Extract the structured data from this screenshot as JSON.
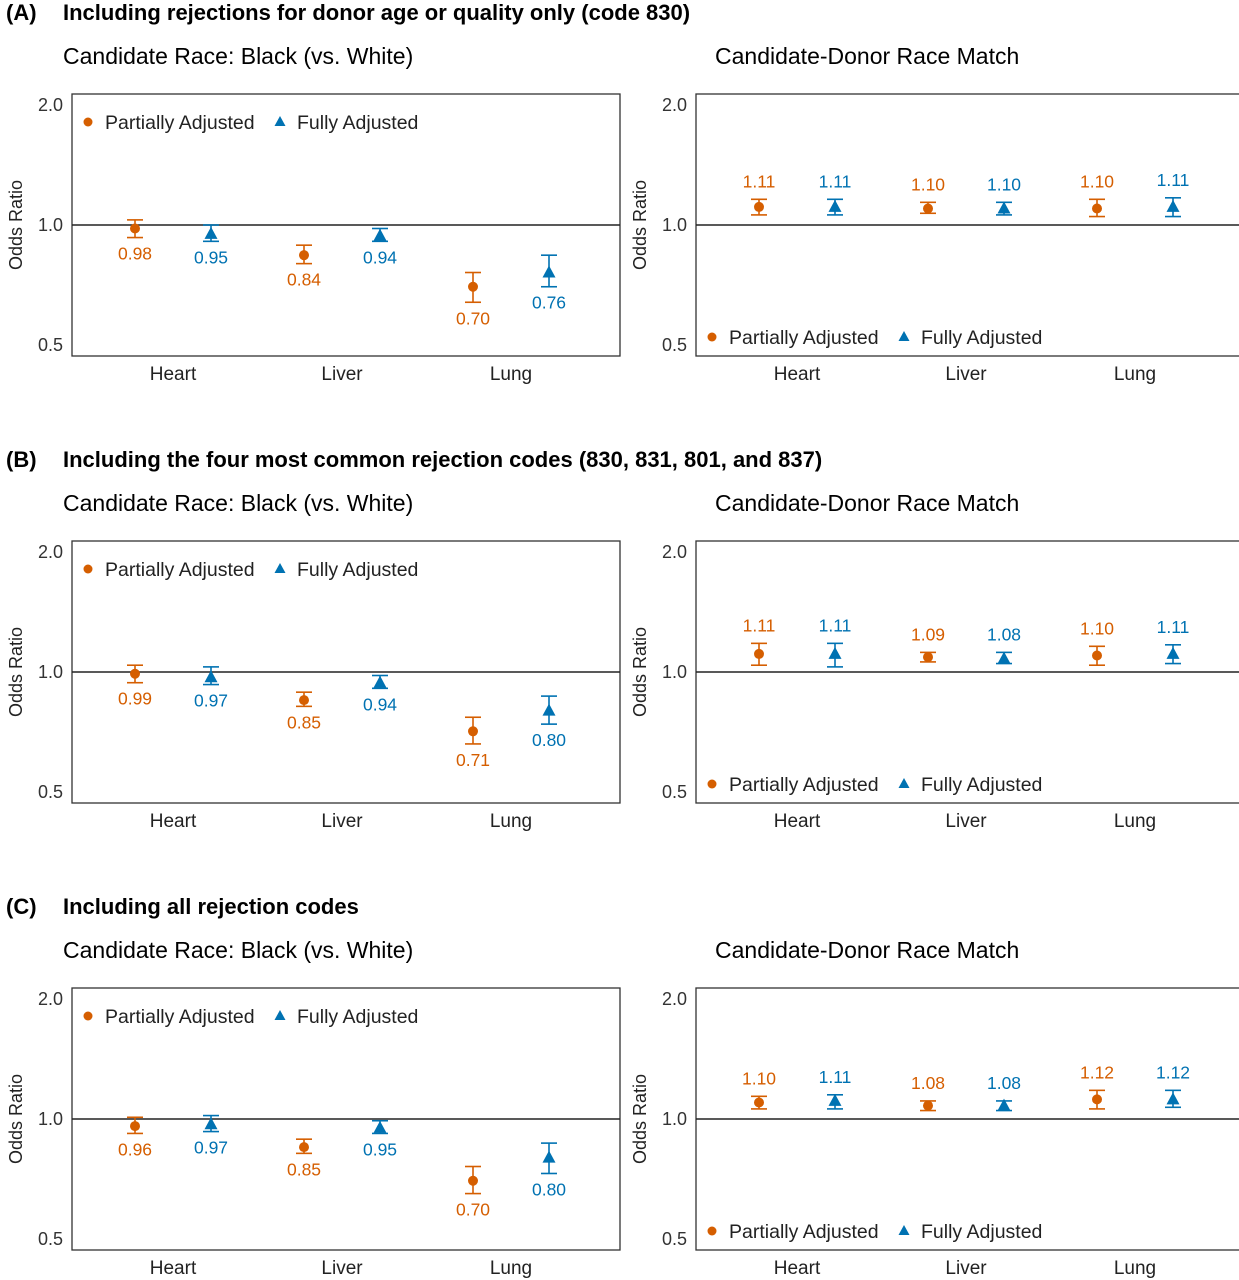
{
  "colors": {
    "partial": "#D55E00",
    "full": "#0072B2"
  },
  "legend": {
    "partial": "Partially Adjusted",
    "full": "Fully Adjusted"
  },
  "sections": [
    {
      "letter": "(A)",
      "title": "Including rejections for donor age or quality only (code 830)"
    },
    {
      "letter": "(B)",
      "title": "Including the four most common rejection codes (830, 831, 801, and 837)"
    },
    {
      "letter": "(C)",
      "title": "Including all rejection codes"
    }
  ],
  "chart_data": [
    {
      "type": "scatter",
      "section": 0,
      "title": "Candidate Race: Black (vs. White)",
      "ylabel": "Odds Ratio",
      "yscale": "log",
      "ylim": [
        0.5,
        2.0
      ],
      "yticks": [
        "0.5",
        "1.0",
        "2.0"
      ],
      "hline": 1.0,
      "categories": [
        "Heart",
        "Liver",
        "Lung"
      ],
      "legend_position": "top-left",
      "series": [
        {
          "name": "Partially Adjusted",
          "marker": "circle",
          "values": [
            0.98,
            0.84,
            0.7
          ],
          "labels": [
            "0.98",
            "0.84",
            "0.70"
          ],
          "ci_low": [
            0.93,
            0.8,
            0.64
          ],
          "ci_high": [
            1.03,
            0.89,
            0.76
          ]
        },
        {
          "name": "Fully Adjusted",
          "marker": "triangle",
          "values": [
            0.95,
            0.94,
            0.76
          ],
          "labels": [
            "0.95",
            "0.94",
            "0.76"
          ],
          "ci_low": [
            0.91,
            0.91,
            0.7
          ],
          "ci_high": [
            1.0,
            0.98,
            0.84
          ]
        }
      ]
    },
    {
      "type": "scatter",
      "section": 0,
      "title": "Candidate-Donor Race Match",
      "ylabel": "Odds Ratio",
      "yscale": "log",
      "ylim": [
        0.5,
        2.0
      ],
      "yticks": [
        "0.5",
        "1.0",
        "2.0"
      ],
      "hline": 1.0,
      "categories": [
        "Heart",
        "Liver",
        "Lung"
      ],
      "legend_position": "bottom-left",
      "series": [
        {
          "name": "Partially Adjusted",
          "marker": "circle",
          "values": [
            1.11,
            1.1,
            1.1
          ],
          "labels": [
            "1.11",
            "1.10",
            "1.10"
          ],
          "ci_low": [
            1.06,
            1.07,
            1.05
          ],
          "ci_high": [
            1.16,
            1.14,
            1.16
          ]
        },
        {
          "name": "Fully Adjusted",
          "marker": "triangle",
          "values": [
            1.11,
            1.1,
            1.11
          ],
          "labels": [
            "1.11",
            "1.10",
            "1.11"
          ],
          "ci_low": [
            1.06,
            1.06,
            1.05
          ],
          "ci_high": [
            1.16,
            1.14,
            1.17
          ]
        }
      ]
    },
    {
      "type": "scatter",
      "section": 1,
      "title": "Candidate Race: Black (vs. White)",
      "ylabel": "Odds Ratio",
      "yscale": "log",
      "ylim": [
        0.5,
        2.0
      ],
      "yticks": [
        "0.5",
        "1.0",
        "2.0"
      ],
      "hline": 1.0,
      "categories": [
        "Heart",
        "Liver",
        "Lung"
      ],
      "legend_position": "top-left",
      "series": [
        {
          "name": "Partially Adjusted",
          "marker": "circle",
          "values": [
            0.99,
            0.85,
            0.71
          ],
          "labels": [
            "0.99",
            "0.85",
            "0.71"
          ],
          "ci_low": [
            0.94,
            0.82,
            0.66
          ],
          "ci_high": [
            1.04,
            0.89,
            0.77
          ]
        },
        {
          "name": "Fully Adjusted",
          "marker": "triangle",
          "values": [
            0.97,
            0.94,
            0.8
          ],
          "labels": [
            "0.97",
            "0.94",
            "0.80"
          ],
          "ci_low": [
            0.93,
            0.91,
            0.74
          ],
          "ci_high": [
            1.03,
            0.98,
            0.87
          ]
        }
      ]
    },
    {
      "type": "scatter",
      "section": 1,
      "title": "Candidate-Donor Race Match",
      "ylabel": "Odds Ratio",
      "yscale": "log",
      "ylim": [
        0.5,
        2.0
      ],
      "yticks": [
        "0.5",
        "1.0",
        "2.0"
      ],
      "hline": 1.0,
      "categories": [
        "Heart",
        "Liver",
        "Lung"
      ],
      "legend_position": "bottom-left",
      "series": [
        {
          "name": "Partially Adjusted",
          "marker": "circle",
          "values": [
            1.11,
            1.09,
            1.1
          ],
          "labels": [
            "1.11",
            "1.09",
            "1.10"
          ],
          "ci_low": [
            1.04,
            1.06,
            1.04
          ],
          "ci_high": [
            1.18,
            1.12,
            1.16
          ]
        },
        {
          "name": "Fully Adjusted",
          "marker": "triangle",
          "values": [
            1.11,
            1.08,
            1.11
          ],
          "labels": [
            "1.11",
            "1.08",
            "1.11"
          ],
          "ci_low": [
            1.03,
            1.05,
            1.05
          ],
          "ci_high": [
            1.18,
            1.12,
            1.17
          ]
        }
      ]
    },
    {
      "type": "scatter",
      "section": 2,
      "title": "Candidate Race: Black (vs. White)",
      "ylabel": "Odds Ratio",
      "yscale": "log",
      "ylim": [
        0.5,
        2.0
      ],
      "yticks": [
        "0.5",
        "1.0",
        "2.0"
      ],
      "hline": 1.0,
      "categories": [
        "Heart",
        "Liver",
        "Lung"
      ],
      "legend_position": "top-left",
      "series": [
        {
          "name": "Partially Adjusted",
          "marker": "circle",
          "values": [
            0.96,
            0.85,
            0.7
          ],
          "labels": [
            "0.96",
            "0.85",
            "0.70"
          ],
          "ci_low": [
            0.92,
            0.82,
            0.65
          ],
          "ci_high": [
            1.01,
            0.89,
            0.76
          ]
        },
        {
          "name": "Fully Adjusted",
          "marker": "triangle",
          "values": [
            0.97,
            0.95,
            0.8
          ],
          "labels": [
            "0.97",
            "0.95",
            "0.80"
          ],
          "ci_low": [
            0.93,
            0.92,
            0.73
          ],
          "ci_high": [
            1.02,
            0.99,
            0.87
          ]
        }
      ]
    },
    {
      "type": "scatter",
      "section": 2,
      "title": "Candidate-Donor Race Match",
      "ylabel": "Odds Ratio",
      "yscale": "log",
      "ylim": [
        0.5,
        2.0
      ],
      "yticks": [
        "0.5",
        "1.0",
        "2.0"
      ],
      "hline": 1.0,
      "categories": [
        "Heart",
        "Liver",
        "Lung"
      ],
      "legend_position": "bottom-left",
      "series": [
        {
          "name": "Partially Adjusted",
          "marker": "circle",
          "values": [
            1.1,
            1.08,
            1.12
          ],
          "labels": [
            "1.10",
            "1.08",
            "1.12"
          ],
          "ci_low": [
            1.06,
            1.05,
            1.06
          ],
          "ci_high": [
            1.14,
            1.11,
            1.18
          ]
        },
        {
          "name": "Fully Adjusted",
          "marker": "triangle",
          "values": [
            1.11,
            1.08,
            1.12
          ],
          "labels": [
            "1.11",
            "1.08",
            "1.12"
          ],
          "ci_low": [
            1.06,
            1.05,
            1.07
          ],
          "ci_high": [
            1.15,
            1.11,
            1.18
          ]
        }
      ]
    }
  ]
}
